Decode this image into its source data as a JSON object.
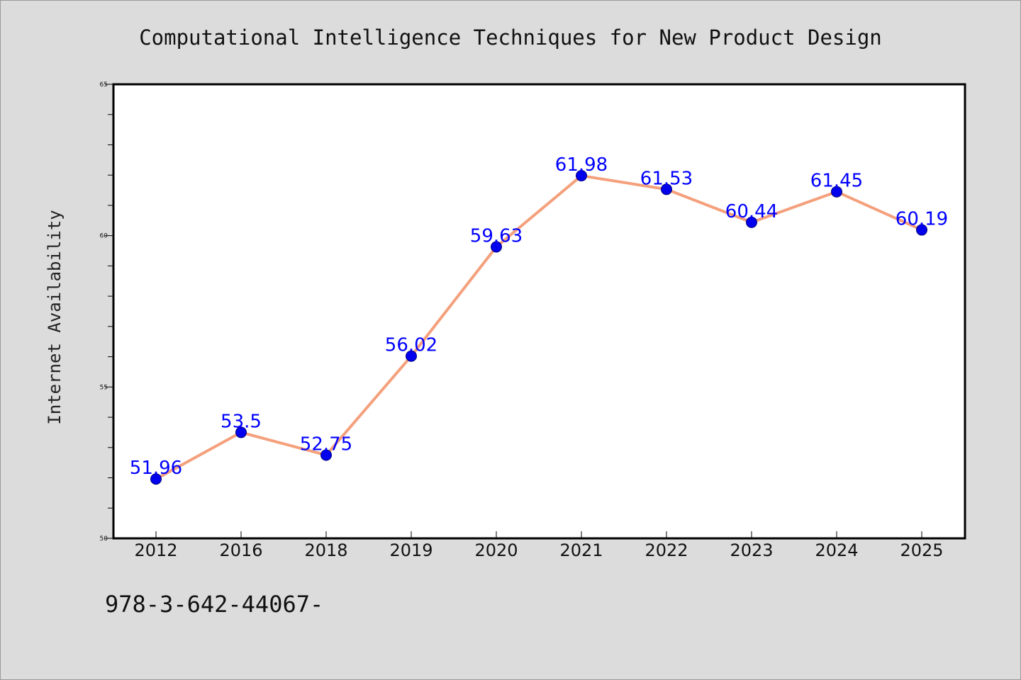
{
  "chart_data": {
    "type": "line",
    "title": "Computational Intelligence Techniques for New Product Design",
    "xlabel": "",
    "ylabel": "Internet Availability",
    "categories": [
      "2012",
      "2016",
      "2018",
      "2019",
      "2020",
      "2021",
      "2022",
      "2023",
      "2024",
      "2025"
    ],
    "series": [
      {
        "values": [
          51.96,
          53.5,
          52.75,
          56.02,
          59.63,
          61.98,
          61.53,
          60.44,
          61.45,
          60.19
        ],
        "data_labels": [
          "51.96",
          "53.5",
          "52.75",
          "56.02",
          "59.63",
          "61.98",
          "61.53",
          "60.44",
          "61.45",
          "60.19"
        ],
        "line_color": "#f4a07c",
        "marker_color": "#0000ee",
        "label_color": "#0000ff"
      }
    ],
    "ylim": [
      50,
      65
    ],
    "yticks": [
      "50",
      "55",
      "60",
      "65"
    ],
    "grid": false,
    "legend": "none"
  },
  "footer": {
    "text": "978-3-642-44067-"
  },
  "colors": {
    "background": "#dcdcdc",
    "plot_background": "#ffffff",
    "axis": "#000000"
  }
}
